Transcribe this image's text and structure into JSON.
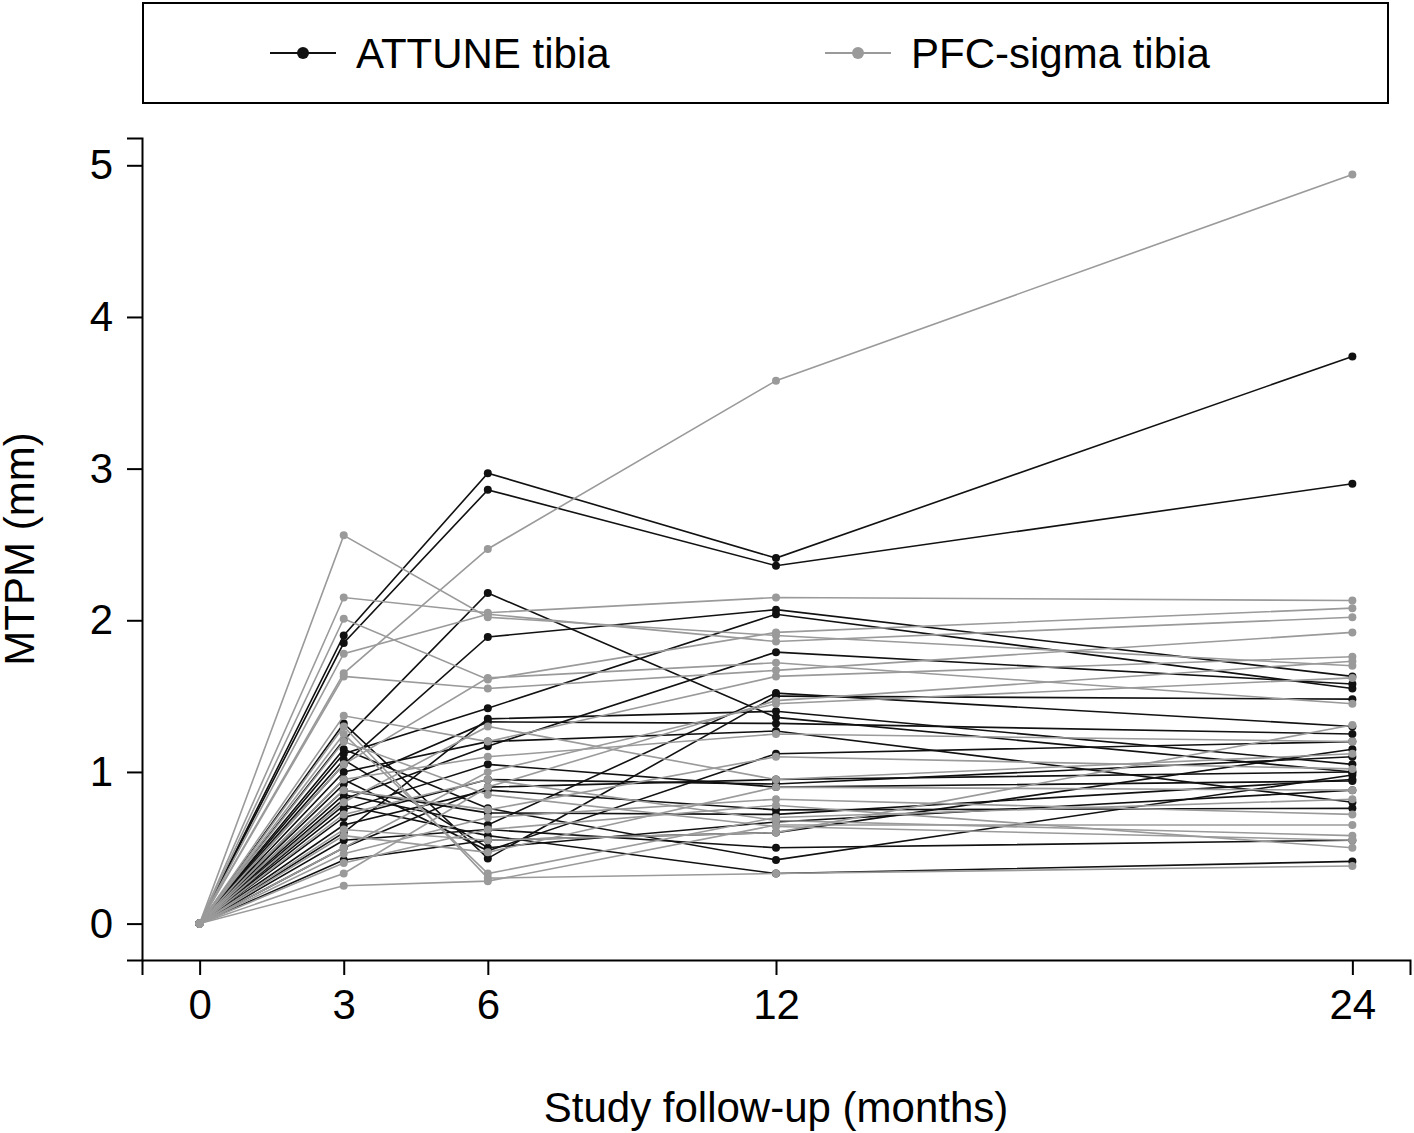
{
  "chart_data": {
    "type": "line",
    "x_label": "Study follow-up (months)",
    "y_label": "MTPM (mm)",
    "x": [
      0,
      3,
      6,
      12,
      24
    ],
    "xlim": [
      -1.2,
      25.2
    ],
    "xticks": [
      0,
      3,
      6,
      12,
      24
    ],
    "ylim": [
      -0.24,
      5.18
    ],
    "yticks": [
      0,
      1,
      2,
      3,
      4,
      5
    ],
    "grid": false,
    "legend": "top",
    "series": [
      {
        "name": "ATTUNE tibia",
        "color": "#111111",
        "marker": "circle",
        "line_style": "solid",
        "values": [
          [
            0,
            1.9,
            2.97,
            2.41,
            3.74
          ],
          [
            0,
            1.85,
            2.86,
            2.36,
            2.9
          ],
          [
            0,
            1.21,
            2.18,
            1.36,
            1.0
          ],
          [
            0,
            1.05,
            1.89,
            2.07,
            1.63
          ],
          [
            0,
            1.12,
            1.42,
            2.04,
            1.55
          ],
          [
            0,
            0.82,
            1.17,
            1.79,
            1.58
          ],
          [
            0,
            1.32,
            0.43,
            1.5,
            1.48
          ],
          [
            0,
            0.95,
            0.48,
            1.12,
            1.2
          ],
          [
            0,
            0.7,
            0.95,
            0.92,
            1.1
          ],
          [
            0,
            0.6,
            1.35,
            1.4,
            1.05
          ],
          [
            0,
            0.55,
            0.62,
            0.5,
            0.55
          ],
          [
            0,
            0.78,
            0.58,
            0.33,
            0.41
          ],
          [
            0,
            0.88,
            0.73,
            0.72,
            0.95
          ],
          [
            0,
            1.0,
            1.2,
            1.27,
            0.8
          ],
          [
            0,
            0.5,
            0.9,
            0.95,
            1.0
          ],
          [
            0,
            0.65,
            0.88,
            0.75,
            0.76
          ],
          [
            0,
            0.92,
            1.33,
            1.32,
            1.25
          ],
          [
            0,
            1.15,
            0.76,
            0.42,
            0.98
          ],
          [
            0,
            0.42,
            0.55,
            0.6,
            1.15
          ],
          [
            0,
            0.75,
            1.05,
            0.9,
            0.94
          ],
          [
            0,
            0.85,
            0.65,
            1.52,
            1.3
          ],
          [
            0,
            1.08,
            0.5,
            0.67,
            0.88
          ]
        ]
      },
      {
        "name": "PFC-sigma tibia",
        "color": "#9a9a9a",
        "marker": "circle",
        "line_style": "solid",
        "values": [
          [
            0,
            1.65,
            2.47,
            3.58,
            4.94
          ],
          [
            0,
            2.56,
            2.02,
            1.9,
            1.7
          ],
          [
            0,
            2.15,
            2.05,
            2.15,
            2.13
          ],
          [
            0,
            2.01,
            1.61,
            1.92,
            2.08
          ],
          [
            0,
            1.78,
            2.04,
            1.86,
            2.02
          ],
          [
            0,
            1.3,
            0.3,
            0.33,
            0.38
          ],
          [
            0,
            0.25,
            0.28,
            0.65,
            0.65
          ],
          [
            0,
            1.63,
            1.55,
            1.67,
            1.92
          ],
          [
            0,
            1.37,
            1.2,
            1.63,
            1.76
          ],
          [
            0,
            0.33,
            0.9,
            1.47,
            1.73
          ],
          [
            0,
            0.5,
            1.0,
            1.45,
            1.62
          ],
          [
            0,
            1.2,
            0.85,
            0.64,
            0.55
          ],
          [
            0,
            0.46,
            0.7,
            0.82,
            0.72
          ],
          [
            0,
            0.62,
            0.55,
            0.6,
            1.31
          ],
          [
            0,
            0.95,
            1.1,
            1.25,
            1.2
          ],
          [
            0,
            0.72,
            0.95,
            0.68,
            0.58
          ],
          [
            0,
            1.05,
            1.62,
            1.72,
            1.45
          ],
          [
            0,
            0.58,
            0.47,
            0.9,
            0.88
          ],
          [
            0,
            0.88,
            0.75,
            1.1,
            1.02
          ],
          [
            0,
            0.4,
            0.62,
            0.78,
            0.5
          ],
          [
            0,
            1.25,
            0.33,
            0.7,
            0.82
          ],
          [
            0,
            0.8,
            1.3,
            0.95,
            1.12
          ]
        ]
      }
    ]
  }
}
